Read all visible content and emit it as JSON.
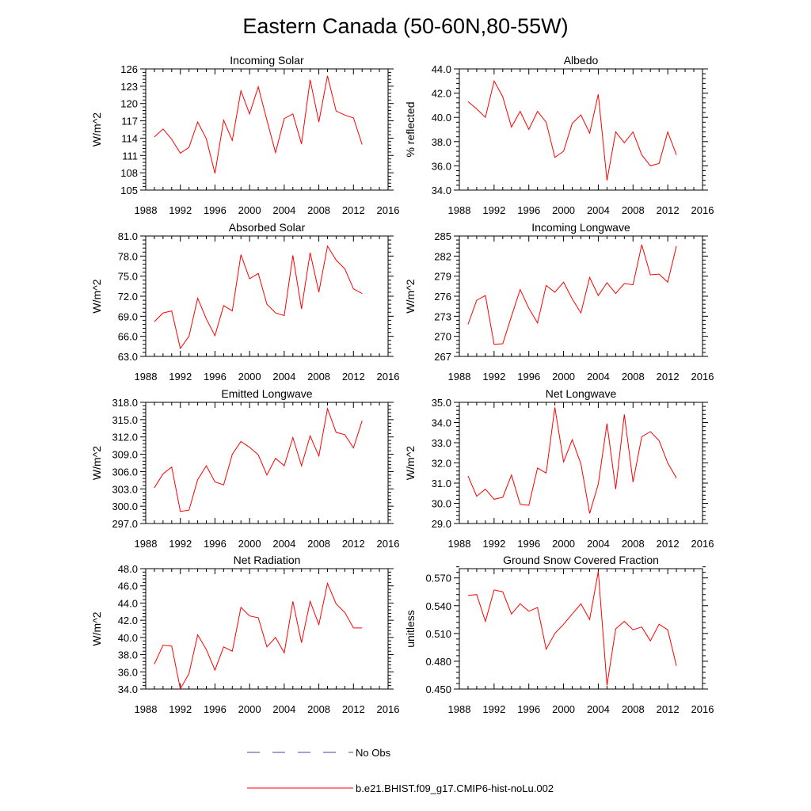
{
  "title": "Eastern Canada (50-60N,80-55W)",
  "colors": {
    "model": "#ff0000",
    "obs": "#3a4aa0",
    "axis": "#000000"
  },
  "legend": {
    "obs_label": "No Obs",
    "model_label": "b.e21.BHIST.f09_g17.CMIP6-hist-noLu.002"
  },
  "chart_data": [
    {
      "type": "line",
      "title": "Incoming Solar",
      "ylabel": "W/m^2",
      "xlim": [
        1988,
        2016
      ],
      "xticks": [
        "1988",
        "1992",
        "1996",
        "2000",
        "2004",
        "2008",
        "2012",
        "2016"
      ],
      "ylim": [
        105,
        126
      ],
      "yticks": [
        "105",
        "108",
        "111",
        "114",
        "117",
        "120",
        "123",
        "126"
      ],
      "x": [
        1989,
        1990,
        1991,
        1992,
        1993,
        1994,
        1995,
        1996,
        1997,
        1998,
        1999,
        2000,
        2001,
        2002,
        2003,
        2004,
        2005,
        2006,
        2007,
        2008,
        2009,
        2010,
        2011,
        2012,
        2013
      ],
      "values": [
        114.2,
        115.6,
        113.8,
        111.4,
        112.4,
        116.8,
        113.9,
        107.9,
        117.1,
        113.6,
        122.2,
        118.2,
        122.9,
        117.1,
        111.5,
        117.4,
        118.2,
        113.0,
        124.1,
        116.8,
        124.8,
        118.7,
        118.0,
        117.5,
        112.9
      ]
    },
    {
      "type": "line",
      "title": "Albedo",
      "ylabel": "% reflected",
      "xlim": [
        1988,
        2016
      ],
      "xticks": [
        "1988",
        "1992",
        "1996",
        "2000",
        "2004",
        "2008",
        "2012",
        "2016"
      ],
      "ylim": [
        34,
        44
      ],
      "yticks": [
        "34.0",
        "36.0",
        "38.0",
        "40.0",
        "42.0",
        "44.0"
      ],
      "x": [
        1989,
        1990,
        1991,
        1992,
        1993,
        1994,
        1995,
        1996,
        1997,
        1998,
        1999,
        2000,
        2001,
        2002,
        2003,
        2004,
        2005,
        2006,
        2007,
        2008,
        2009,
        2010,
        2011,
        2012,
        2013
      ],
      "values": [
        41.3,
        40.7,
        40.0,
        43.0,
        41.7,
        39.2,
        40.5,
        39.0,
        40.5,
        39.6,
        36.7,
        37.2,
        39.5,
        40.2,
        38.7,
        41.9,
        34.8,
        38.8,
        37.9,
        38.8,
        36.9,
        36.0,
        36.2,
        38.8,
        36.9
      ]
    },
    {
      "type": "line",
      "title": "Absorbed Solar",
      "ylabel": "W/m^2",
      "xlim": [
        1988,
        2016
      ],
      "xticks": [
        "1988",
        "1992",
        "1996",
        "2000",
        "2004",
        "2008",
        "2012",
        "2016"
      ],
      "ylim": [
        63,
        81
      ],
      "yticks": [
        "63.0",
        "66.0",
        "69.0",
        "72.0",
        "75.0",
        "78.0",
        "81.0"
      ],
      "x": [
        1989,
        1990,
        1991,
        1992,
        1993,
        1994,
        1995,
        1996,
        1997,
        1998,
        1999,
        2000,
        2001,
        2002,
        2003,
        2004,
        2005,
        2006,
        2007,
        2008,
        2009,
        2010,
        2011,
        2012,
        2013
      ],
      "values": [
        68.2,
        69.5,
        69.8,
        64.2,
        66.0,
        71.7,
        68.6,
        66.1,
        70.6,
        69.8,
        78.2,
        74.6,
        75.4,
        70.8,
        69.5,
        69.1,
        78.1,
        70.1,
        78.5,
        72.6,
        79.5,
        77.4,
        76.1,
        73.1,
        72.4
      ]
    },
    {
      "type": "line",
      "title": "Incoming Longwave",
      "ylabel": "W/m^2",
      "xlim": [
        1988,
        2016
      ],
      "xticks": [
        "1988",
        "1992",
        "1996",
        "2000",
        "2004",
        "2008",
        "2012",
        "2016"
      ],
      "ylim": [
        267,
        285
      ],
      "yticks": [
        "267",
        "270",
        "273",
        "276",
        "279",
        "282",
        "285"
      ],
      "x": [
        1989,
        1990,
        1991,
        1992,
        1993,
        1994,
        1995,
        1996,
        1997,
        1998,
        1999,
        2000,
        2001,
        2002,
        2003,
        2004,
        2005,
        2006,
        2007,
        2008,
        2009,
        2010,
        2011,
        2012,
        2013
      ],
      "values": [
        271.8,
        275.4,
        276.1,
        268.8,
        268.9,
        273.0,
        277.0,
        274.2,
        272.0,
        277.6,
        276.6,
        278.1,
        275.6,
        273.5,
        278.8,
        276.1,
        278.0,
        276.4,
        277.9,
        277.7,
        283.7,
        279.2,
        279.3,
        278.1,
        283.5
      ]
    },
    {
      "type": "line",
      "title": "Emitted Longwave",
      "ylabel": "W/m^2",
      "xlim": [
        1988,
        2016
      ],
      "xticks": [
        "1988",
        "1992",
        "1996",
        "2000",
        "2004",
        "2008",
        "2012",
        "2016"
      ],
      "ylim": [
        297,
        318
      ],
      "yticks": [
        "297.0",
        "300.0",
        "303.0",
        "306.0",
        "309.0",
        "312.0",
        "315.0",
        "318.0"
      ],
      "x": [
        1989,
        1990,
        1991,
        1992,
        1993,
        1994,
        1995,
        1996,
        1997,
        1998,
        1999,
        2000,
        2001,
        2002,
        2003,
        2004,
        2005,
        2006,
        2007,
        2008,
        2009,
        2010,
        2011,
        2012,
        2013
      ],
      "values": [
        303.2,
        305.6,
        306.8,
        299.1,
        299.3,
        304.6,
        307.0,
        304.2,
        303.7,
        309.0,
        311.2,
        310.2,
        308.9,
        305.4,
        308.3,
        307.0,
        311.9,
        307.0,
        312.2,
        308.7,
        316.9,
        312.8,
        312.4,
        310.1,
        314.8
      ]
    },
    {
      "type": "line",
      "title": "Net Longwave",
      "ylabel": "W/m^2",
      "xlim": [
        1988,
        2016
      ],
      "xticks": [
        "1988",
        "1992",
        "1996",
        "2000",
        "2004",
        "2008",
        "2012",
        "2016"
      ],
      "ylim": [
        29,
        35
      ],
      "yticks": [
        "29.0",
        "30.0",
        "31.0",
        "32.0",
        "33.0",
        "34.0",
        "35.0"
      ],
      "x": [
        1989,
        1990,
        1991,
        1992,
        1993,
        1994,
        1995,
        1996,
        1997,
        1998,
        1999,
        2000,
        2001,
        2002,
        2003,
        2004,
        2005,
        2006,
        2007,
        2008,
        2009,
        2010,
        2011,
        2012,
        2013
      ],
      "values": [
        31.35,
        30.35,
        30.7,
        30.2,
        30.3,
        31.4,
        29.95,
        29.9,
        31.75,
        31.5,
        34.75,
        32.05,
        33.15,
        31.95,
        29.5,
        30.95,
        33.95,
        30.7,
        34.4,
        31.05,
        33.3,
        33.55,
        33.1,
        32.0,
        31.25
      ]
    },
    {
      "type": "line",
      "title": "Net Radiation",
      "ylabel": "W/m^2",
      "xlim": [
        1988,
        2016
      ],
      "xticks": [
        "1988",
        "1992",
        "1996",
        "2000",
        "2004",
        "2008",
        "2012",
        "2016"
      ],
      "ylim": [
        34,
        48
      ],
      "yticks": [
        "34.0",
        "36.0",
        "38.0",
        "40.0",
        "42.0",
        "44.0",
        "46.0",
        "48.0"
      ],
      "x": [
        1989,
        1990,
        1991,
        1992,
        1993,
        1994,
        1995,
        1996,
        1997,
        1998,
        1999,
        2000,
        2001,
        2002,
        2003,
        2004,
        2005,
        2006,
        2007,
        2008,
        2009,
        2010,
        2011,
        2012,
        2013
      ],
      "values": [
        36.9,
        39.1,
        39.0,
        34.0,
        35.8,
        40.3,
        38.6,
        36.2,
        38.9,
        38.4,
        43.5,
        42.5,
        42.3,
        38.9,
        40.0,
        38.2,
        44.2,
        39.4,
        44.2,
        41.5,
        46.3,
        43.9,
        42.9,
        41.1,
        41.1
      ]
    },
    {
      "type": "line",
      "title": "Ground Snow Covered Fraction",
      "ylabel": "unitless",
      "xlim": [
        1988,
        2016
      ],
      "xticks": [
        "1988",
        "1992",
        "1996",
        "2000",
        "2004",
        "2008",
        "2012",
        "2016"
      ],
      "ylim": [
        0.45,
        0.58
      ],
      "yticks": [
        "0.450",
        "0.480",
        "0.510",
        "0.540",
        "0.570"
      ],
      "x": [
        1989,
        1990,
        1991,
        1992,
        1993,
        1994,
        1995,
        1996,
        1997,
        1998,
        1999,
        2000,
        2001,
        2002,
        2003,
        2004,
        2005,
        2006,
        2007,
        2008,
        2009,
        2010,
        2011,
        2012,
        2013
      ],
      "values": [
        0.551,
        0.552,
        0.523,
        0.557,
        0.555,
        0.531,
        0.542,
        0.534,
        0.538,
        0.493,
        0.51,
        0.52,
        0.531,
        0.542,
        0.525,
        0.577,
        0.454,
        0.515,
        0.523,
        0.514,
        0.517,
        0.502,
        0.52,
        0.514,
        0.475
      ]
    }
  ]
}
